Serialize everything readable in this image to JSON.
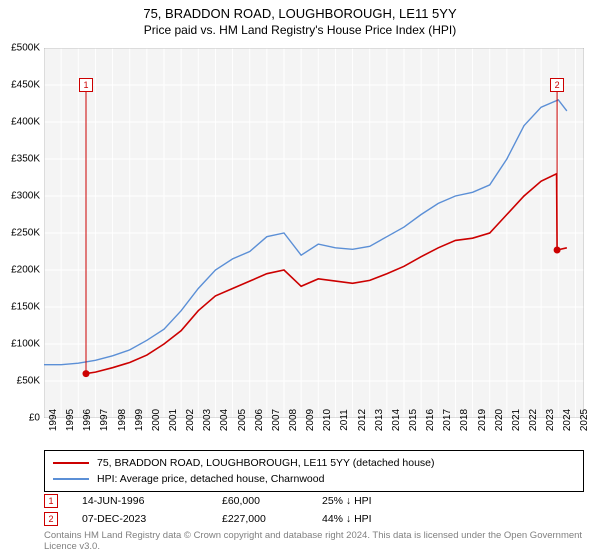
{
  "title": "75, BRADDON ROAD, LOUGHBOROUGH, LE11 5YY",
  "subtitle": "Price paid vs. HM Land Registry's House Price Index (HPI)",
  "chart": {
    "type": "line",
    "background_color": "#f4f4f4",
    "grid_color": "#ffffff",
    "grid_width": 1,
    "x_years": [
      1994,
      1995,
      1996,
      1997,
      1998,
      1999,
      2000,
      2001,
      2002,
      2003,
      2004,
      2005,
      2006,
      2007,
      2008,
      2009,
      2010,
      2011,
      2012,
      2013,
      2014,
      2015,
      2016,
      2017,
      2018,
      2019,
      2020,
      2021,
      2022,
      2023,
      2024,
      2025
    ],
    "y_ticks": [
      0,
      50000,
      100000,
      150000,
      200000,
      250000,
      300000,
      350000,
      400000,
      450000,
      500000
    ],
    "y_labels": [
      "£0",
      "£50K",
      "£100K",
      "£150K",
      "£200K",
      "£250K",
      "£300K",
      "£350K",
      "£400K",
      "£450K",
      "£500K"
    ],
    "ylim": [
      0,
      500000
    ],
    "xlim": [
      1994,
      2025.5
    ],
    "label_fontsize": 10,
    "series": [
      {
        "name": "property",
        "color": "#cc0000",
        "line_width": 1.6,
        "data": [
          [
            1996.45,
            60000
          ],
          [
            1997,
            62000
          ],
          [
            1998,
            68000
          ],
          [
            1999,
            75000
          ],
          [
            2000,
            85000
          ],
          [
            2001,
            100000
          ],
          [
            2002,
            118000
          ],
          [
            2003,
            145000
          ],
          [
            2004,
            165000
          ],
          [
            2005,
            175000
          ],
          [
            2006,
            185000
          ],
          [
            2007,
            195000
          ],
          [
            2008,
            200000
          ],
          [
            2009,
            178000
          ],
          [
            2010,
            188000
          ],
          [
            2011,
            185000
          ],
          [
            2012,
            182000
          ],
          [
            2013,
            186000
          ],
          [
            2014,
            195000
          ],
          [
            2015,
            205000
          ],
          [
            2016,
            218000
          ],
          [
            2017,
            230000
          ],
          [
            2018,
            240000
          ],
          [
            2019,
            243000
          ],
          [
            2020,
            250000
          ],
          [
            2021,
            275000
          ],
          [
            2022,
            300000
          ],
          [
            2023,
            320000
          ],
          [
            2023.9,
            330000
          ],
          [
            2023.93,
            227000
          ],
          [
            2024.5,
            230000
          ]
        ],
        "markers": [
          {
            "id": "1",
            "x": 1996.45,
            "y": 60000,
            "box_y": 450000
          },
          {
            "id": "2",
            "x": 2023.93,
            "y": 227000,
            "box_y": 450000
          }
        ]
      },
      {
        "name": "hpi",
        "color": "#5b8fd6",
        "line_width": 1.4,
        "data": [
          [
            1994,
            72000
          ],
          [
            1995,
            72000
          ],
          [
            1996,
            74000
          ],
          [
            1997,
            78000
          ],
          [
            1998,
            84000
          ],
          [
            1999,
            92000
          ],
          [
            2000,
            105000
          ],
          [
            2001,
            120000
          ],
          [
            2002,
            145000
          ],
          [
            2003,
            175000
          ],
          [
            2004,
            200000
          ],
          [
            2005,
            215000
          ],
          [
            2006,
            225000
          ],
          [
            2007,
            245000
          ],
          [
            2008,
            250000
          ],
          [
            2009,
            220000
          ],
          [
            2010,
            235000
          ],
          [
            2011,
            230000
          ],
          [
            2012,
            228000
          ],
          [
            2013,
            232000
          ],
          [
            2014,
            245000
          ],
          [
            2015,
            258000
          ],
          [
            2016,
            275000
          ],
          [
            2017,
            290000
          ],
          [
            2018,
            300000
          ],
          [
            2019,
            305000
          ],
          [
            2020,
            315000
          ],
          [
            2021,
            350000
          ],
          [
            2022,
            395000
          ],
          [
            2023,
            420000
          ],
          [
            2024,
            430000
          ],
          [
            2024.5,
            415000
          ]
        ]
      }
    ]
  },
  "legend": {
    "items": [
      {
        "color": "#cc0000",
        "label": "75, BRADDON ROAD, LOUGHBOROUGH, LE11 5YY (detached house)"
      },
      {
        "color": "#5b8fd6",
        "label": "HPI: Average price, detached house, Charnwood"
      }
    ]
  },
  "transactions": [
    {
      "id": "1",
      "color": "#cc0000",
      "date": "14-JUN-1996",
      "price": "£60,000",
      "pct": "25% ↓ HPI"
    },
    {
      "id": "2",
      "color": "#cc0000",
      "date": "07-DEC-2023",
      "price": "£227,000",
      "pct": "44% ↓ HPI"
    }
  ],
  "attribution": "Contains HM Land Registry data © Crown copyright and database right 2024. This data is licensed under the Open Government Licence v3.0."
}
